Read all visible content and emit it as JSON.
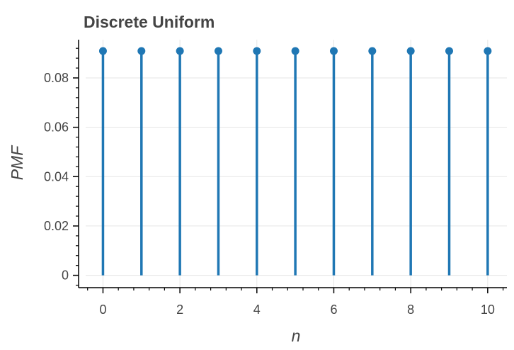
{
  "chart_data": {
    "type": "stem",
    "title": "Discrete Uniform",
    "xlabel": "n",
    "ylabel": "PMF",
    "x": [
      0,
      1,
      2,
      3,
      4,
      5,
      6,
      7,
      8,
      9,
      10
    ],
    "values": [
      0.0909,
      0.0909,
      0.0909,
      0.0909,
      0.0909,
      0.0909,
      0.0909,
      0.0909,
      0.0909,
      0.0909,
      0.0909
    ],
    "xlim": [
      -0.45,
      10.5
    ],
    "ylim": [
      -0.005,
      0.0955
    ],
    "xticks": [
      0,
      2,
      4,
      6,
      8,
      10
    ],
    "xtick_labels": [
      "0",
      "2",
      "4",
      "6",
      "8",
      "10"
    ],
    "yticks": [
      0,
      0.02,
      0.04,
      0.06,
      0.08
    ],
    "ytick_labels": [
      "0",
      "0.02",
      "0.04",
      "0.06",
      "0.08"
    ],
    "grid": true,
    "color": "#1f77b4"
  }
}
